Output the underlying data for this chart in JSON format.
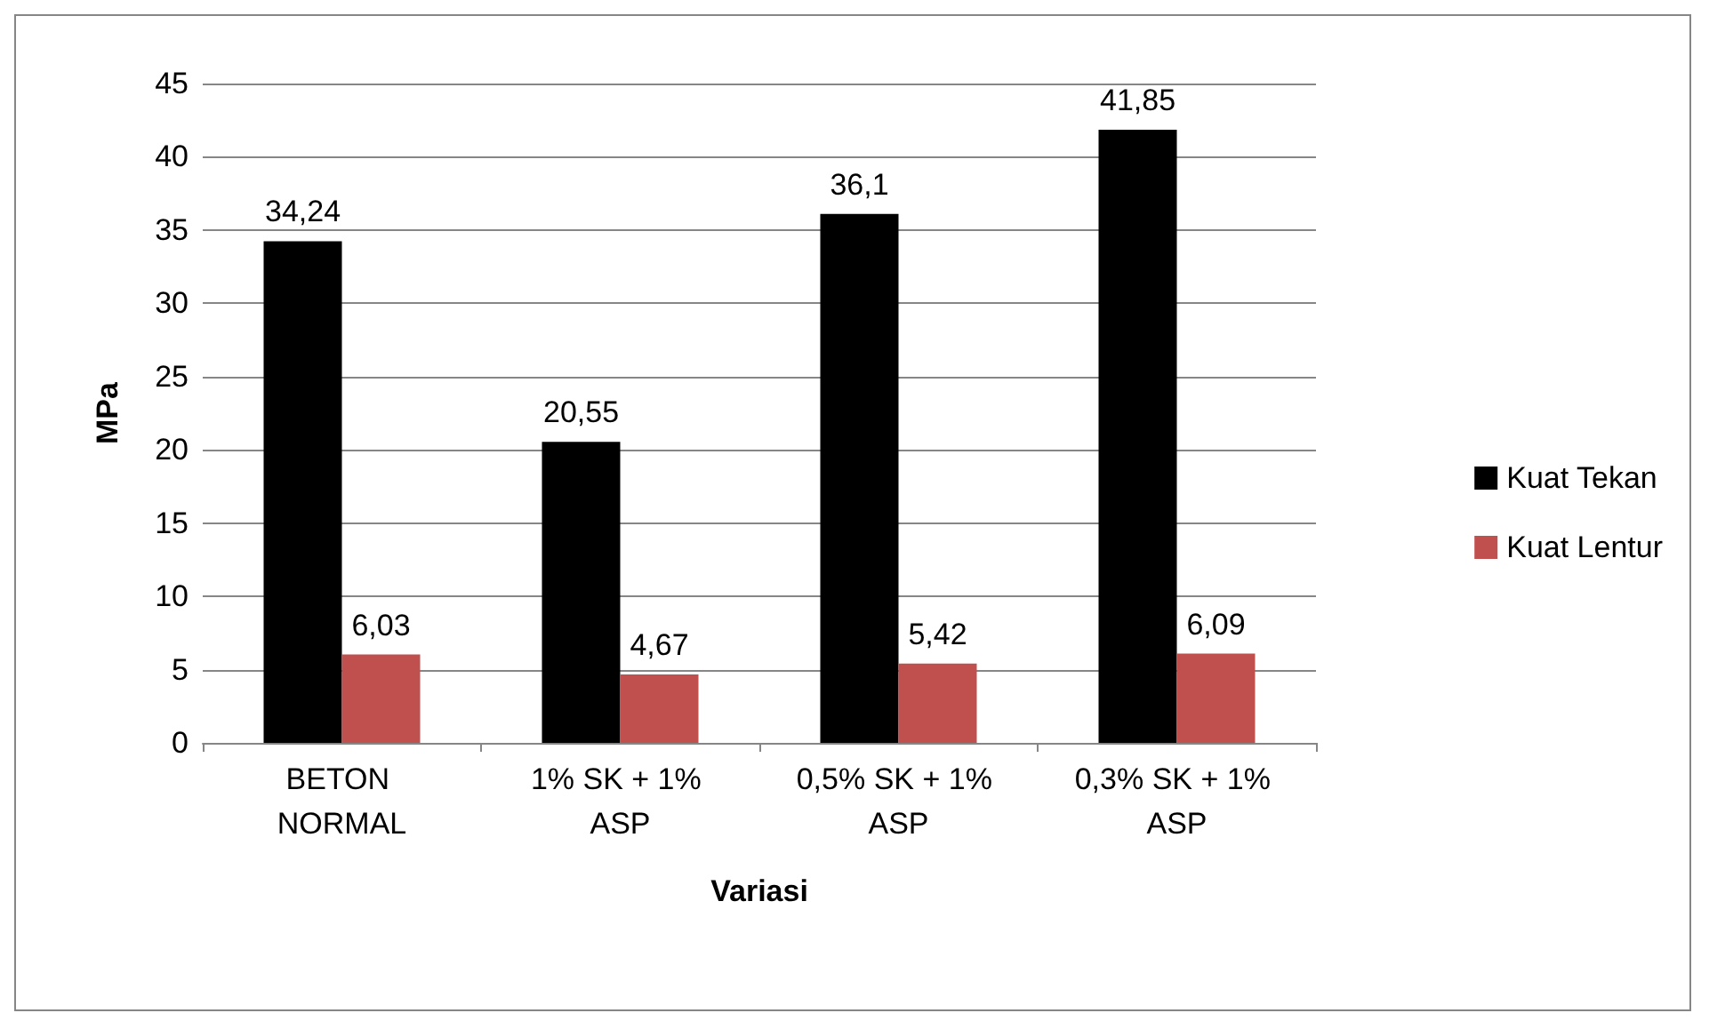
{
  "chart_data": {
    "type": "bar",
    "xlabel": "Variasi",
    "ylabel": "MPa",
    "categories": [
      "BETON NORMAL",
      "1% SK + 1% ASP",
      "0,5% SK + 1% ASP",
      "0,3% SK + 1% ASP"
    ],
    "series": [
      {
        "name": "Kuat Tekan",
        "color": "#000000",
        "values": [
          34.24,
          20.55,
          36.1,
          41.85
        ],
        "value_labels": [
          "34,24",
          "20,55",
          "36,1",
          "41,85"
        ]
      },
      {
        "name": "Kuat Lentur",
        "color": "#c0504d",
        "values": [
          6.03,
          4.67,
          5.42,
          6.09
        ],
        "value_labels": [
          "6,03",
          "4,67",
          "5,42",
          "6,09"
        ]
      }
    ],
    "ylim": [
      0,
      45
    ],
    "yticks": [
      0,
      5,
      10,
      15,
      20,
      25,
      30,
      35,
      40,
      45
    ],
    "grid": "y",
    "legend": "right"
  }
}
